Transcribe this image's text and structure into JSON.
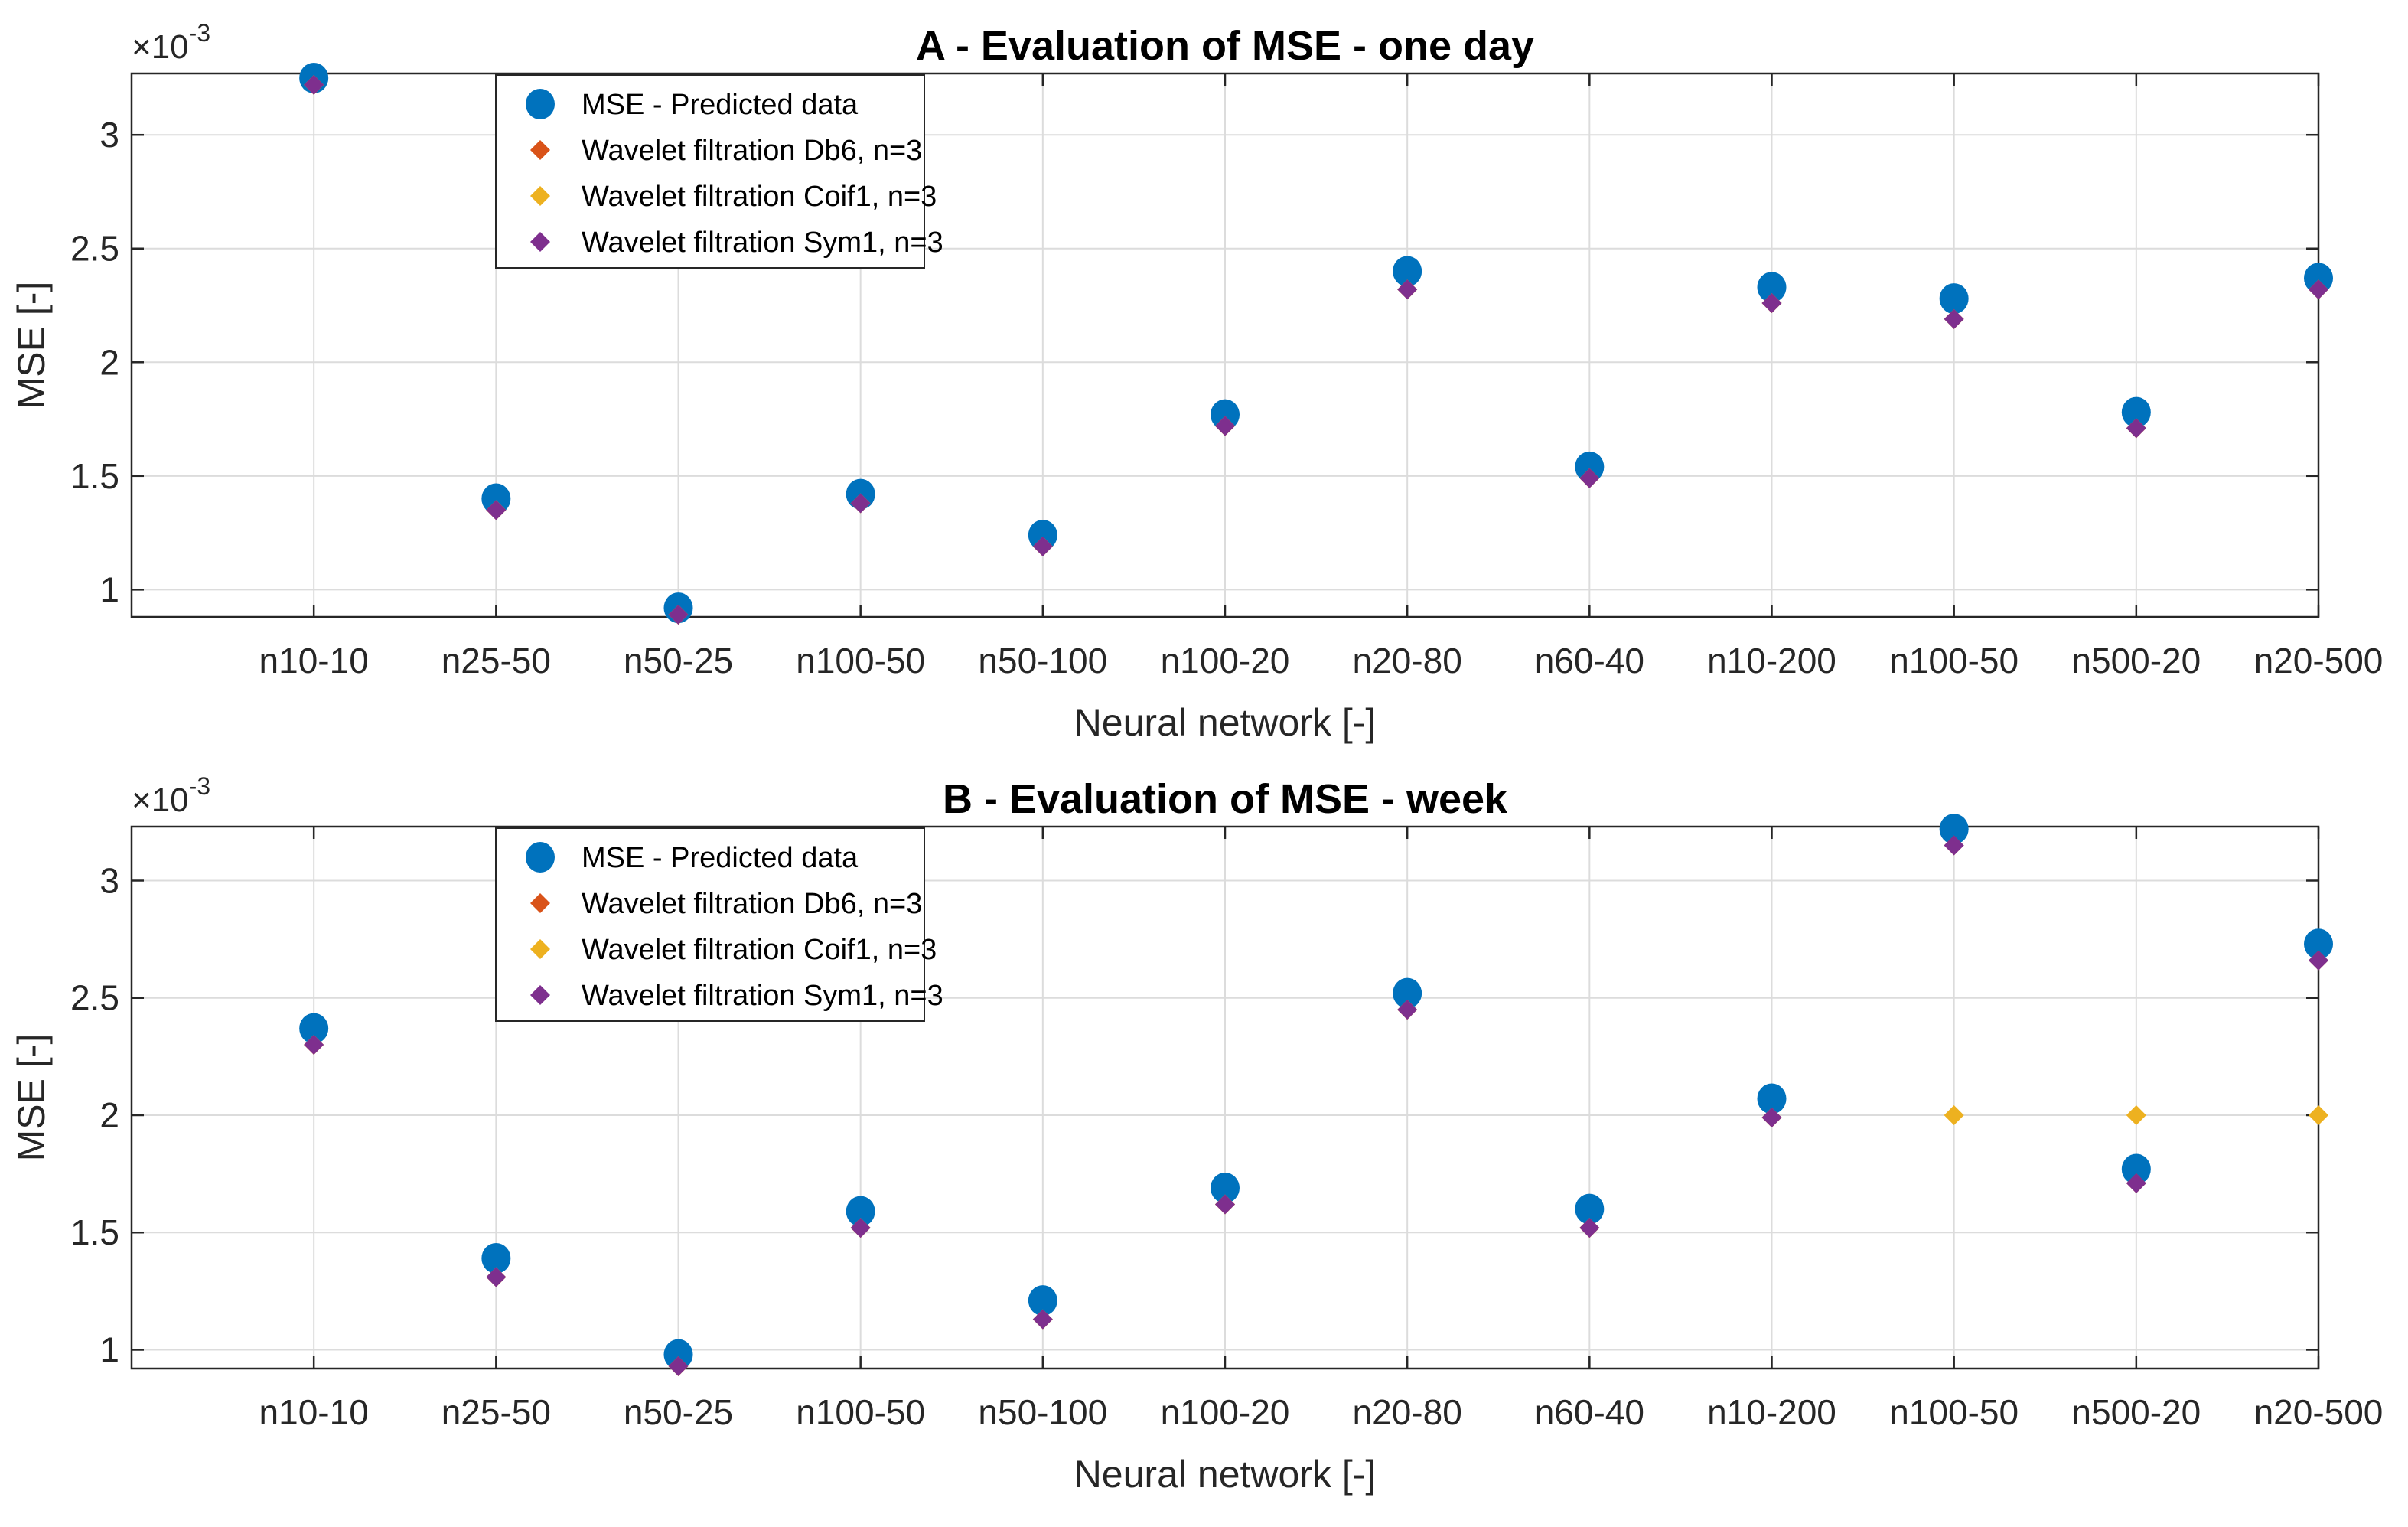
{
  "chart_data": [
    {
      "type": "scatter",
      "title": "A - Evaluation of MSE - one day",
      "xlabel": "Neural network [-]",
      "ylabel": "MSE [-]",
      "y_exponent": "×10",
      "y_exponent_power": "-3",
      "ylim": [
        0.88,
        3.27
      ],
      "yticks": [
        1,
        1.5,
        2,
        2.5,
        3
      ],
      "ytick_labels": [
        "1",
        "1.5",
        "2",
        "2.5",
        "3"
      ],
      "grid": true,
      "legend_position": "upper-left",
      "categories": [
        "n10-10",
        "n25-50",
        "n50-25",
        "n100-50",
        "n50-100",
        "n100-20",
        "n20-80",
        "n60-40",
        "n10-200",
        "n100-50",
        "n500-20",
        "n20-500"
      ],
      "series": [
        {
          "name": "MSE - Predicted data",
          "marker": "circle",
          "color": "#0072BD",
          "values": [
            3.25,
            1.4,
            0.92,
            1.42,
            1.24,
            1.77,
            2.4,
            1.54,
            2.33,
            2.28,
            1.78,
            2.37
          ]
        },
        {
          "name": "Wavelet filtration Db6, n=3",
          "marker": "diamond",
          "color": "#D95319",
          "values": [
            3.22,
            1.35,
            0.89,
            1.38,
            1.19,
            1.72,
            2.32,
            1.49,
            2.26,
            2.19,
            1.71,
            2.32
          ]
        },
        {
          "name": "Wavelet filtration Coif1, n=3",
          "marker": "diamond",
          "color": "#EDB120",
          "values": [
            3.22,
            1.35,
            0.89,
            1.38,
            1.19,
            1.72,
            2.32,
            1.49,
            2.26,
            2.19,
            1.71,
            2.32
          ]
        },
        {
          "name": "Wavelet filtration Sym1, n=3",
          "marker": "diamond",
          "color": "#7E2F8E",
          "values": [
            3.22,
            1.35,
            0.89,
            1.38,
            1.19,
            1.72,
            2.32,
            1.49,
            2.26,
            2.19,
            1.71,
            2.32
          ]
        }
      ]
    },
    {
      "type": "scatter",
      "title": "B - Evaluation of MSE - week",
      "xlabel": "Neural network [-]",
      "ylabel": "MSE [-]",
      "y_exponent": "×10",
      "y_exponent_power": "-3",
      "ylim": [
        0.92,
        3.23
      ],
      "yticks": [
        1,
        1.5,
        2,
        2.5,
        3
      ],
      "ytick_labels": [
        "1",
        "1.5",
        "2",
        "2.5",
        "3"
      ],
      "grid": true,
      "legend_position": "upper-left",
      "categories": [
        "n10-10",
        "n25-50",
        "n50-25",
        "n100-50",
        "n50-100",
        "n100-20",
        "n20-80",
        "n60-40",
        "n10-200",
        "n100-50",
        "n500-20",
        "n20-500"
      ],
      "series": [
        {
          "name": "MSE - Predicted data",
          "marker": "circle",
          "color": "#0072BD",
          "values": [
            2.37,
            1.39,
            0.98,
            1.59,
            1.21,
            1.69,
            2.52,
            1.6,
            2.07,
            3.22,
            1.77,
            2.73
          ]
        },
        {
          "name": "Wavelet filtration Db6, n=3",
          "marker": "diamond",
          "color": "#D95319",
          "values": [
            2.3,
            1.31,
            0.93,
            1.52,
            1.13,
            1.62,
            2.45,
            1.52,
            1.99,
            3.15,
            1.71,
            2.66
          ]
        },
        {
          "name": "Wavelet filtration Coif1, n=3",
          "marker": "diamond",
          "color": "#EDB120",
          "values": [
            2.3,
            1.31,
            0.93,
            1.52,
            1.13,
            1.62,
            2.45,
            1.52,
            1.99,
            2.0,
            2.0,
            2.0
          ]
        },
        {
          "name": "Wavelet filtration Sym1, n=3",
          "marker": "diamond",
          "color": "#7E2F8E",
          "values": [
            2.3,
            1.31,
            0.93,
            1.52,
            1.13,
            1.62,
            2.45,
            1.52,
            1.99,
            3.15,
            1.71,
            2.66
          ]
        }
      ]
    }
  ]
}
